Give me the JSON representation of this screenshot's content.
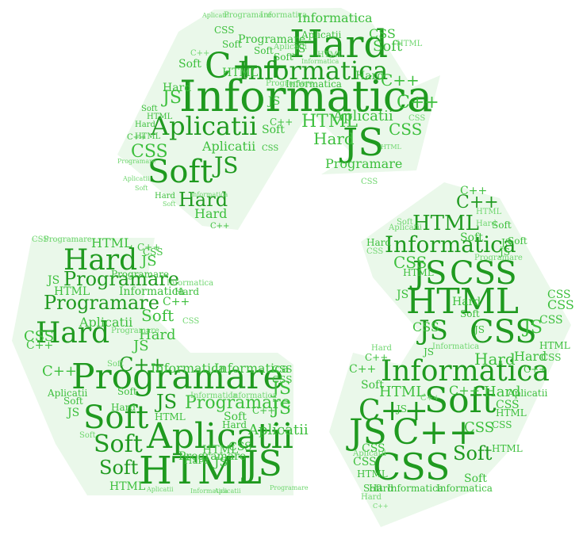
{
  "colors": {
    "word_dark": "#1f9a1f",
    "word_mid": "#3cbf3c",
    "word_light": "#6fd66f",
    "shape_fill": "#eaf8ea",
    "background": "#ffffff"
  },
  "cloud": {
    "shape": "recycle-symbol",
    "words": {
      "informatica": "Informatica",
      "hard": "Hard",
      "cpp": "C++",
      "js": "JS",
      "aplicatii": "Aplicatii",
      "soft": "Soft",
      "css": "CSS",
      "html": "HTML",
      "programare": "Programare"
    }
  }
}
